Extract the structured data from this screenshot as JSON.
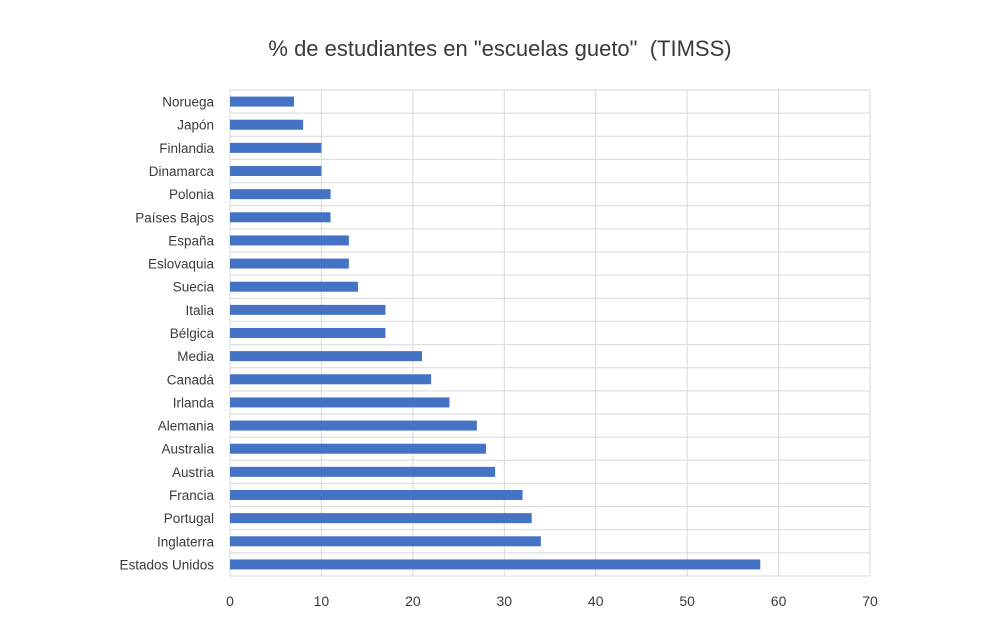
{
  "chart_data": {
    "type": "bar",
    "orientation": "horizontal",
    "title": "% de estudiantes en \"escuelas gueto\"  (TIMSS)",
    "xlabel": "",
    "ylabel": "",
    "categories": [
      "Noruega",
      "Japón",
      "Finlandia",
      "Dinamarca",
      "Polonia",
      "Países Bajos",
      "España",
      "Eslovaquia",
      "Suecia",
      "Italia",
      "Bélgica",
      "Media",
      "Canadá",
      "Irlanda",
      "Alemania",
      "Australia",
      "Austria",
      "Francia",
      "Portugal",
      "Inglaterra",
      "Estados Unidos"
    ],
    "values": [
      7,
      8,
      10,
      10,
      11,
      11,
      13,
      13,
      14,
      17,
      17,
      21,
      22,
      24,
      27,
      28,
      29,
      32,
      33,
      34,
      58
    ],
    "xlim": [
      0,
      70
    ],
    "xticks": [
      0,
      10,
      20,
      30,
      40,
      50,
      60,
      70
    ],
    "grid": true,
    "legend": "none",
    "bar_color": "#4472C4",
    "grid_color": "#D9D9D9"
  }
}
